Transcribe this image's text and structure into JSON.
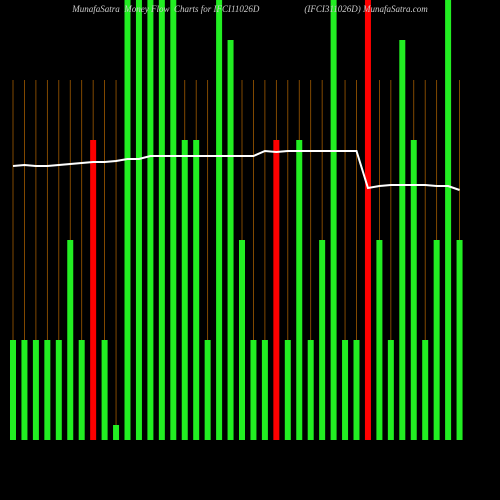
{
  "chart_data": {
    "type": "bar",
    "title": "MunafaSatra  Money Flow  Charts for IFCI11026D                    (IFCI311026D) MunafaSatra.com",
    "categories": [
      null,
      null,
      null,
      null,
      null,
      null,
      null,
      null,
      null,
      null,
      null,
      null,
      null,
      null,
      null,
      null,
      null,
      null,
      null,
      null,
      null,
      null,
      null,
      null,
      null,
      null,
      null,
      null,
      null,
      null,
      null,
      null,
      null,
      null,
      null,
      null,
      null,
      null,
      null,
      null
    ],
    "values": [
      100,
      100,
      100,
      100,
      100,
      200,
      100,
      300,
      100,
      15,
      440,
      440,
      440,
      440,
      440,
      300,
      300,
      100,
      440,
      400,
      200,
      100,
      100,
      300,
      100,
      300,
      100,
      200,
      440,
      100,
      100,
      440,
      200,
      100,
      400,
      300,
      100,
      200,
      440,
      200
    ],
    "colors": [
      "#22ee22",
      "#22ee22",
      "#22ee22",
      "#22ee22",
      "#22ee22",
      "#22ee22",
      "#22ee22",
      "#ff0000",
      "#22ee22",
      "#22ee22",
      "#22ee22",
      "#22ee22",
      "#22ee22",
      "#22ee22",
      "#22ee22",
      "#22ee22",
      "#22ee22",
      "#22ee22",
      "#22ee22",
      "#22ee22",
      "#22ee22",
      "#22ee22",
      "#22ee22",
      "#ff0000",
      "#22ee22",
      "#22ee22",
      "#22ee22",
      "#22ee22",
      "#22ee22",
      "#22ee22",
      "#22ee22",
      "#ff0000",
      "#22ee22",
      "#22ee22",
      "#22ee22",
      "#22ee22",
      "#22ee22",
      "#22ee22",
      "#22ee22",
      "#22ee22"
    ],
    "line": {
      "color": "#ffffff",
      "values": [
        274,
        275,
        274,
        274,
        275,
        276,
        277,
        278,
        278,
        279,
        281,
        281,
        284,
        284,
        284,
        284,
        284,
        284,
        284,
        284,
        284,
        284,
        289,
        288,
        289,
        289,
        289,
        289,
        289,
        289,
        289,
        252,
        254,
        255,
        255,
        255,
        255,
        254,
        254,
        250
      ]
    },
    "ylim": [
      0,
      440
    ],
    "background": "#000000"
  }
}
